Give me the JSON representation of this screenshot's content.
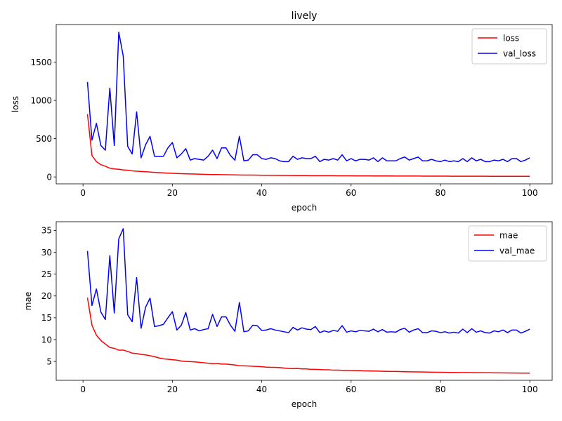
{
  "chart_data": [
    {
      "type": "line",
      "title": "lively",
      "xlabel": "epoch",
      "ylabel": "loss",
      "xlim": [
        -6,
        105
      ],
      "ylim": [
        -90,
        1990
      ],
      "xticks": [
        0,
        20,
        40,
        60,
        80,
        100
      ],
      "yticks": [
        0,
        500,
        1000,
        1500
      ],
      "legend_position": "top-right",
      "grid": false,
      "series": [
        {
          "name": "loss",
          "color": "#ff0000",
          "x": [
            1,
            2,
            3,
            4,
            5,
            6,
            7,
            8,
            9,
            10,
            11,
            12,
            13,
            14,
            15,
            16,
            17,
            18,
            19,
            20,
            21,
            22,
            23,
            24,
            25,
            26,
            27,
            28,
            29,
            30,
            31,
            32,
            33,
            34,
            35,
            36,
            37,
            38,
            39,
            40,
            41,
            42,
            43,
            44,
            45,
            46,
            47,
            48,
            49,
            50,
            51,
            52,
            53,
            54,
            55,
            56,
            57,
            58,
            59,
            60,
            61,
            62,
            63,
            64,
            65,
            66,
            67,
            68,
            69,
            70,
            71,
            72,
            73,
            74,
            75,
            76,
            77,
            78,
            79,
            80,
            81,
            82,
            83,
            84,
            85,
            86,
            87,
            88,
            89,
            90,
            91,
            92,
            93,
            94,
            95,
            96,
            97,
            98,
            99,
            100
          ],
          "values": [
            820,
            280,
            200,
            160,
            140,
            115,
            105,
            100,
            92,
            88,
            80,
            75,
            72,
            68,
            65,
            60,
            57,
            53,
            50,
            48,
            45,
            43,
            41,
            39,
            38,
            36,
            35,
            33,
            32,
            31,
            30,
            29,
            28,
            27,
            26,
            25,
            24,
            24,
            23,
            22,
            22,
            21,
            21,
            20,
            20,
            19,
            19,
            18,
            18,
            18,
            17,
            17,
            17,
            16,
            16,
            16,
            15,
            15,
            15,
            15,
            14,
            14,
            14,
            14,
            13,
            13,
            13,
            13,
            13,
            12,
            12,
            12,
            12,
            12,
            12,
            11,
            11,
            11,
            11,
            11,
            11,
            10,
            10,
            10,
            10,
            10,
            10,
            10,
            10,
            10,
            9,
            9,
            9,
            9,
            9,
            9,
            9,
            9,
            9,
            9
          ]
        },
        {
          "name": "val_loss",
          "color": "#0000ff",
          "x": [
            1,
            2,
            3,
            4,
            5,
            6,
            7,
            8,
            9,
            10,
            11,
            12,
            13,
            14,
            15,
            16,
            17,
            18,
            19,
            20,
            21,
            22,
            23,
            24,
            25,
            26,
            27,
            28,
            29,
            30,
            31,
            32,
            33,
            34,
            35,
            36,
            37,
            38,
            39,
            40,
            41,
            42,
            43,
            44,
            45,
            46,
            47,
            48,
            49,
            50,
            51,
            52,
            53,
            54,
            55,
            56,
            57,
            58,
            59,
            60,
            61,
            62,
            63,
            64,
            65,
            66,
            67,
            68,
            69,
            70,
            71,
            72,
            73,
            74,
            75,
            76,
            77,
            78,
            79,
            80,
            81,
            82,
            83,
            84,
            85,
            86,
            87,
            88,
            89,
            90,
            91,
            92,
            93,
            94,
            95,
            96,
            97,
            98,
            99,
            100
          ],
          "values": [
            1240,
            480,
            700,
            410,
            350,
            1160,
            410,
            1890,
            1580,
            400,
            300,
            850,
            250,
            420,
            530,
            270,
            270,
            270,
            380,
            450,
            250,
            300,
            370,
            220,
            240,
            230,
            220,
            270,
            350,
            240,
            380,
            380,
            280,
            220,
            530,
            210,
            220,
            290,
            290,
            240,
            230,
            250,
            240,
            210,
            200,
            200,
            270,
            230,
            250,
            240,
            240,
            270,
            200,
            230,
            220,
            240,
            220,
            290,
            210,
            240,
            210,
            230,
            230,
            220,
            250,
            200,
            250,
            210,
            210,
            210,
            240,
            260,
            220,
            240,
            260,
            210,
            210,
            230,
            210,
            200,
            220,
            200,
            210,
            200,
            240,
            200,
            250,
            210,
            230,
            200,
            200,
            220,
            210,
            230,
            200,
            240,
            240,
            200,
            220,
            250
          ]
        }
      ]
    },
    {
      "type": "line",
      "title": "",
      "xlabel": "epoch",
      "ylabel": "mae",
      "xlim": [
        -6,
        105
      ],
      "ylim": [
        0.68,
        37.0
      ],
      "xticks": [
        0,
        20,
        40,
        60,
        80,
        100
      ],
      "yticks": [
        5,
        10,
        15,
        20,
        25,
        30,
        35
      ],
      "legend_position": "top-right",
      "grid": false,
      "series": [
        {
          "name": "mae",
          "color": "#ff0000",
          "x": [
            1,
            2,
            3,
            4,
            5,
            6,
            7,
            8,
            9,
            10,
            11,
            12,
            13,
            14,
            15,
            16,
            17,
            18,
            19,
            20,
            21,
            22,
            23,
            24,
            25,
            26,
            27,
            28,
            29,
            30,
            31,
            32,
            33,
            34,
            35,
            36,
            37,
            38,
            39,
            40,
            41,
            42,
            43,
            44,
            45,
            46,
            47,
            48,
            49,
            50,
            51,
            52,
            53,
            54,
            55,
            56,
            57,
            58,
            59,
            60,
            61,
            62,
            63,
            64,
            65,
            66,
            67,
            68,
            69,
            70,
            71,
            72,
            73,
            74,
            75,
            76,
            77,
            78,
            79,
            80,
            81,
            82,
            83,
            84,
            85,
            86,
            87,
            88,
            89,
            90,
            91,
            92,
            93,
            94,
            95,
            96,
            97,
            98,
            99,
            100
          ],
          "values": [
            19.6,
            13.3,
            11.0,
            9.8,
            9.0,
            8.2,
            8.0,
            7.6,
            7.6,
            7.3,
            6.9,
            6.8,
            6.6,
            6.5,
            6.3,
            6.1,
            5.8,
            5.6,
            5.5,
            5.4,
            5.3,
            5.1,
            5.0,
            4.95,
            4.9,
            4.8,
            4.7,
            4.6,
            4.5,
            4.55,
            4.4,
            4.4,
            4.3,
            4.2,
            4.0,
            4.0,
            3.95,
            3.9,
            3.85,
            3.8,
            3.7,
            3.65,
            3.65,
            3.6,
            3.5,
            3.4,
            3.35,
            3.4,
            3.3,
            3.3,
            3.2,
            3.2,
            3.15,
            3.1,
            3.1,
            3.0,
            3.0,
            2.98,
            2.95,
            2.93,
            2.9,
            2.88,
            2.85,
            2.83,
            2.8,
            2.78,
            2.75,
            2.73,
            2.7,
            2.7,
            2.68,
            2.65,
            2.63,
            2.6,
            2.6,
            2.58,
            2.56,
            2.55,
            2.53,
            2.52,
            2.5,
            2.49,
            2.48,
            2.47,
            2.46,
            2.45,
            2.44,
            2.43,
            2.42,
            2.41,
            2.4,
            2.39,
            2.38,
            2.37,
            2.36,
            2.35,
            2.34,
            2.33,
            2.32,
            2.3
          ]
        },
        {
          "name": "val_mae",
          "color": "#0000ff",
          "x": [
            1,
            2,
            3,
            4,
            5,
            6,
            7,
            8,
            9,
            10,
            11,
            12,
            13,
            14,
            15,
            16,
            17,
            18,
            19,
            20,
            21,
            22,
            23,
            24,
            25,
            26,
            27,
            28,
            29,
            30,
            31,
            32,
            33,
            34,
            35,
            36,
            37,
            38,
            39,
            40,
            41,
            42,
            43,
            44,
            45,
            46,
            47,
            48,
            49,
            50,
            51,
            52,
            53,
            54,
            55,
            56,
            57,
            58,
            59,
            60,
            61,
            62,
            63,
            64,
            65,
            66,
            67,
            68,
            69,
            70,
            71,
            72,
            73,
            74,
            75,
            76,
            77,
            78,
            79,
            80,
            81,
            82,
            83,
            84,
            85,
            86,
            87,
            88,
            89,
            90,
            91,
            92,
            93,
            94,
            95,
            96,
            97,
            98,
            99,
            100
          ],
          "values": [
            30.3,
            17.8,
            21.6,
            16.3,
            14.6,
            29.2,
            16.1,
            33.1,
            35.4,
            15.7,
            14.1,
            24.2,
            12.6,
            17.4,
            19.5,
            13.0,
            13.2,
            13.5,
            15.0,
            16.4,
            12.2,
            13.3,
            16.2,
            12.2,
            12.5,
            12.0,
            12.3,
            12.5,
            15.8,
            13.0,
            15.2,
            15.2,
            13.3,
            11.9,
            18.5,
            11.8,
            12.0,
            13.3,
            13.2,
            12.1,
            12.2,
            12.5,
            12.2,
            12.0,
            11.8,
            11.6,
            12.8,
            12.2,
            12.7,
            12.4,
            12.3,
            13.0,
            11.6,
            12.0,
            11.7,
            12.1,
            11.9,
            13.2,
            11.7,
            12.0,
            11.8,
            12.1,
            12.0,
            11.9,
            12.4,
            11.8,
            12.3,
            11.7,
            11.8,
            11.7,
            12.3,
            12.6,
            11.7,
            12.2,
            12.5,
            11.6,
            11.6,
            12.0,
            11.9,
            11.6,
            11.8,
            11.5,
            11.7,
            11.5,
            12.4,
            11.6,
            12.5,
            11.7,
            12.0,
            11.6,
            11.5,
            12.0,
            11.8,
            12.2,
            11.6,
            12.2,
            12.2,
            11.5,
            11.9,
            12.4
          ]
        }
      ]
    }
  ]
}
